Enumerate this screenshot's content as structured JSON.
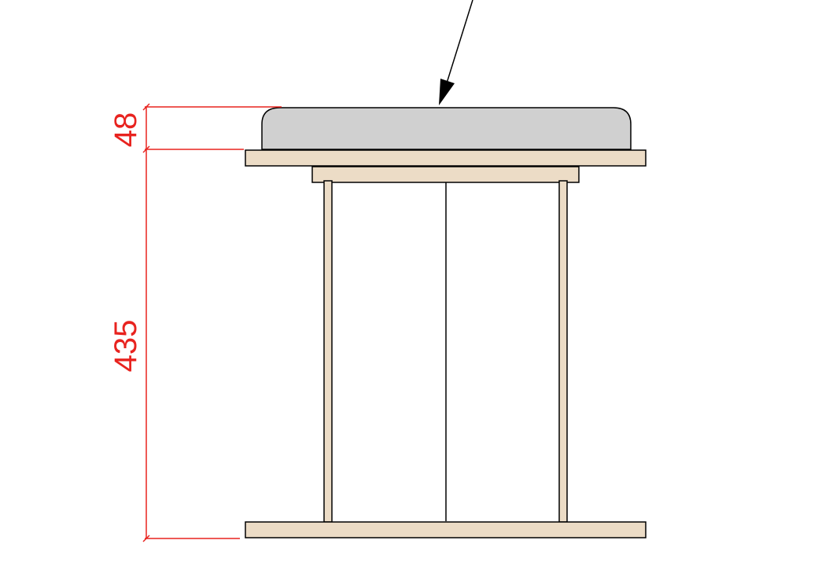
{
  "dimensions": {
    "cushion_height": "48",
    "base_height": "435"
  },
  "colors": {
    "dimension": "#e8231f",
    "wood_fill": "#ecdcc6",
    "cushion_fill": "#d0d0d0",
    "outline": "#000000"
  }
}
